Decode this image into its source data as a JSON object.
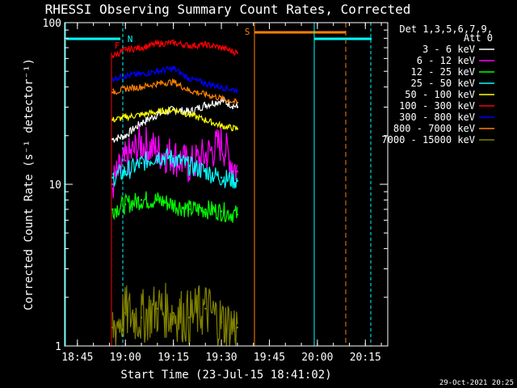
{
  "chart_data": {
    "type": "line",
    "title": "RHESSI Observing Summary Count Rates, Corrected",
    "xlabel": "Start Time (23-Jul-15 18:41:02)",
    "ylabel": "Corrected Count Rate (s⁻¹ detector⁻¹)",
    "y_scale": "log",
    "ylim": [
      1,
      100
    ],
    "xlim": [
      "18:41",
      "20:22"
    ],
    "x_tick_labels": [
      "18:45",
      "19:00",
      "19:15",
      "19:30",
      "19:45",
      "20:00",
      "20:15"
    ],
    "y_tick_labels": [
      "1",
      "10",
      "100"
    ],
    "legend_header": [
      "Det 1,3,5,6,7,9,",
      "Att 0"
    ],
    "legend_position": "right",
    "timestamp": "29-Oct-2021 20:25",
    "series": [
      {
        "name": "3 - 6 keV",
        "color": "#ffffff",
        "x": [
          "18:56",
          "19:00",
          "19:05",
          "19:10",
          "19:15",
          "19:20",
          "19:25",
          "19:30",
          "19:35"
        ],
        "y": [
          19,
          20,
          24,
          27,
          29,
          28,
          31,
          33,
          30
        ]
      },
      {
        "name": "6 - 12 keV",
        "color": "#ff00ff",
        "x": [
          "18:56",
          "19:00",
          "19:05",
          "19:10",
          "19:15",
          "19:20",
          "19:25",
          "19:30",
          "19:35"
        ],
        "y": [
          10,
          14,
          18,
          16,
          15,
          13,
          15,
          18,
          12
        ]
      },
      {
        "name": "12 - 25 keV",
        "color": "#00ff00",
        "x": [
          "18:56",
          "19:00",
          "19:05",
          "19:10",
          "19:15",
          "19:20",
          "19:25",
          "19:30",
          "19:35"
        ],
        "y": [
          7,
          7.5,
          8,
          8,
          7.5,
          7,
          7,
          6.8,
          6.5
        ]
      },
      {
        "name": "25 - 50 keV",
        "color": "#00ffff",
        "x": [
          "18:56",
          "19:00",
          "19:05",
          "19:10",
          "19:15",
          "19:20",
          "19:25",
          "19:30",
          "19:35"
        ],
        "y": [
          11,
          12,
          13.5,
          15,
          14.5,
          13,
          12,
          11,
          10.5
        ]
      },
      {
        "name": "50 - 100 keV",
        "color": "#ffff00",
        "x": [
          "18:56",
          "19:00",
          "19:05",
          "19:10",
          "19:15",
          "19:20",
          "19:25",
          "19:30",
          "19:35"
        ],
        "y": [
          25,
          26,
          27,
          28,
          29,
          27,
          25,
          23,
          22
        ]
      },
      {
        "name": "100 - 300 keV",
        "color": "#ff0000",
        "x": [
          "18:56",
          "19:00",
          "19:05",
          "19:10",
          "19:15",
          "19:20",
          "19:25",
          "19:30",
          "19:35"
        ],
        "y": [
          62,
          68,
          70,
          74,
          75,
          72,
          73,
          70,
          65
        ]
      },
      {
        "name": "300 - 800 keV",
        "color": "#0000ff",
        "x": [
          "18:56",
          "19:00",
          "19:05",
          "19:10",
          "19:15",
          "19:20",
          "19:25",
          "19:30",
          "19:35"
        ],
        "y": [
          45,
          47,
          48,
          50,
          52,
          45,
          42,
          40,
          38
        ]
      },
      {
        "name": "800 - 7000 keV",
        "color": "#ff8000",
        "x": [
          "18:56",
          "19:00",
          "19:05",
          "19:10",
          "19:15",
          "19:20",
          "19:25",
          "19:30",
          "19:35"
        ],
        "y": [
          37,
          39,
          40,
          42,
          43,
          38,
          36,
          34,
          32
        ]
      },
      {
        "name": "7000 - 15000 keV",
        "color": "#808000",
        "x": [
          "18:56",
          "19:00",
          "19:05",
          "19:10",
          "19:15",
          "19:20",
          "19:25",
          "19:30",
          "19:35"
        ],
        "y": [
          1.3,
          1.6,
          1.5,
          1.7,
          1.6,
          1.5,
          1.7,
          1.4,
          1.3
        ]
      }
    ],
    "annotations": [
      {
        "label": "N",
        "color": "#00ffff",
        "x": "19:00"
      },
      {
        "label": "F",
        "color": "#ff0000",
        "x": "18:57"
      },
      {
        "label": "S",
        "color": "#ff8000",
        "x": "19:37"
      }
    ]
  }
}
